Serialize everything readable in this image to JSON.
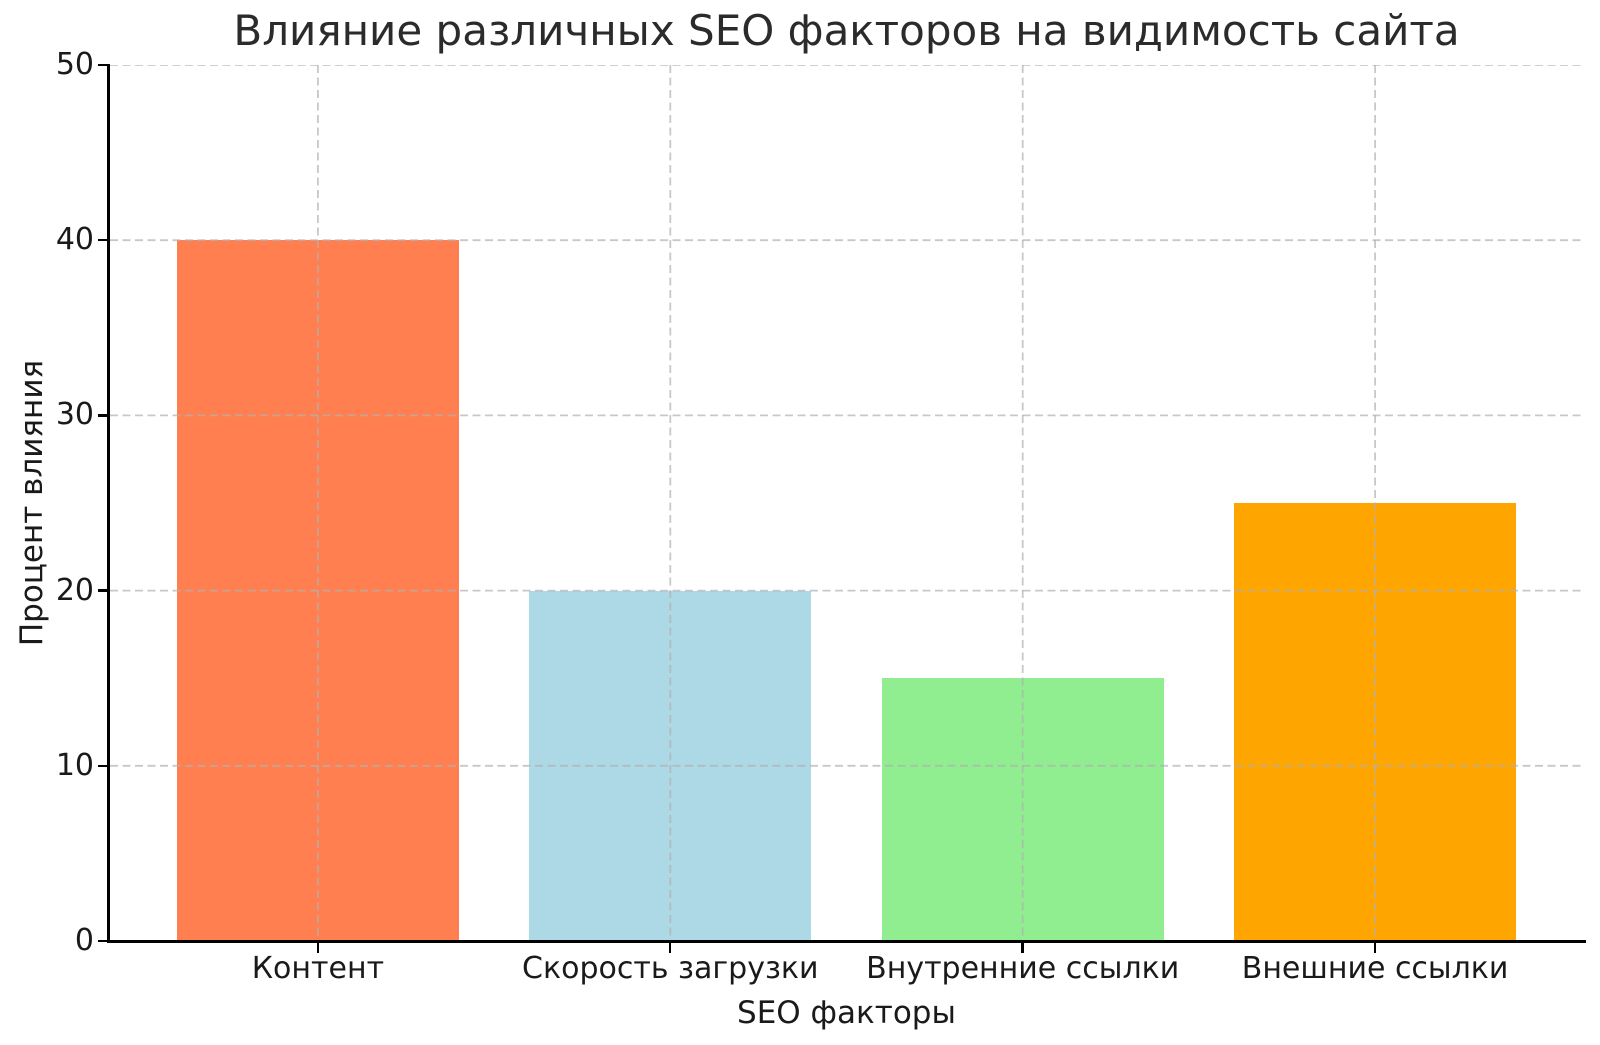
{
  "chart_data": {
    "type": "bar",
    "title": "Влияние различных SEO факторов на видимость сайта",
    "xlabel": "SEO факторы",
    "ylabel": "Процент влияния",
    "categories": [
      "Контент",
      "Скорость загрузки",
      "Внутренние ссылки",
      "Внешние ссылки"
    ],
    "values": [
      40,
      20,
      15,
      25
    ],
    "bar_colors": [
      "#FF7F50",
      "#ADD8E6",
      "#90EE90",
      "#FFA500"
    ],
    "ylim": [
      0,
      50
    ],
    "yticks": [
      0,
      10,
      20,
      30,
      40,
      50
    ],
    "grid": "dashed",
    "grid_color": "#b0b0b0",
    "grid_opacity": 0.7,
    "axis_color": "#000000",
    "text_color": "#1a1a1a",
    "background": "#ffffff",
    "legend": "none",
    "bar_width_fraction": 0.8
  }
}
